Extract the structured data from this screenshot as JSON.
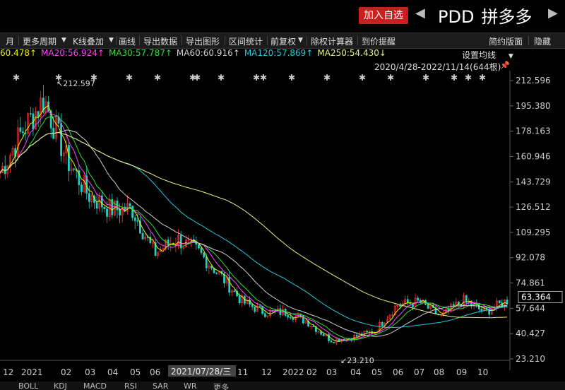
{
  "header": {
    "watchlist_button": "加入自选",
    "prev_icon": "triangle-left-icon",
    "next_icon": "triangle-right-icon",
    "ticker": "PDD",
    "name_cn": "拼多多"
  },
  "toolbar": {
    "items": [
      "月",
      "更多周期",
      "K线叠加",
      "画线",
      "导出数据",
      "导出图形",
      "区间统计",
      "前复权",
      "除权计算器",
      "到价提醒"
    ],
    "right_items": [
      "简约版面",
      "隐藏"
    ]
  },
  "ma_legend": [
    {
      "label": "60.478↑",
      "color": "#f0f000"
    },
    {
      "label": "MA20:56.924↑",
      "color": "#ff40ff"
    },
    {
      "label": "MA30:57.787↑",
      "color": "#30e030"
    },
    {
      "label": "MA60:60.916↑",
      "color": "#d0d0d0"
    },
    {
      "label": "MA120:57.869↑",
      "color": "#20c8e0"
    },
    {
      "label": "MA250:54.430↓",
      "color": "#f0f080"
    }
  ],
  "ma_settings": "设置均线",
  "date_range": "2020/4/28-2022/11/14(644根)",
  "bottom_tabs": [
    "BOLL",
    "KDJ",
    "MACD",
    "RSI",
    "SAR",
    "WR",
    "更多"
  ],
  "chart_data": {
    "type": "candlestick",
    "y_ticks": [
      "212.596",
      "195.380",
      "178.163",
      "160.946",
      "143.729",
      "126.512",
      "109.295",
      "92.078",
      "74.861",
      "57.644",
      "40.427",
      "23.210"
    ],
    "ylim": [
      23.21,
      212.596
    ],
    "current_price": "63.364",
    "annotations": [
      {
        "label": "212.597",
        "x": "2021-02",
        "y": 212.597
      },
      {
        "label": "23.210",
        "x": "2022-05",
        "y": 23.21
      }
    ],
    "x_ticks": [
      "12",
      "2021",
      "02",
      "03",
      "04",
      "05",
      "06",
      "07",
      "2021/07/28/三",
      "11",
      "12",
      "2022",
      "02",
      "03",
      "04",
      "05",
      "06",
      "07",
      "08",
      "09",
      "10"
    ],
    "series": [
      {
        "name": "close",
        "color": "#e05050",
        "x": [
          "2020-12",
          "2021-01",
          "2021-02",
          "2021-03",
          "2021-04",
          "2021-05",
          "2021-06",
          "2021-07",
          "2021-08",
          "2021-09",
          "2021-10",
          "2021-11",
          "2021-12",
          "2022-01",
          "2022-02",
          "2022-03",
          "2022-04",
          "2022-05",
          "2022-06",
          "2022-07",
          "2022-08",
          "2022-09",
          "2022-10",
          "2022-11"
        ],
        "values": [
          150,
          178,
          200,
          160,
          135,
          125,
          125,
          95,
          105,
          96,
          80,
          62,
          55,
          55,
          48,
          36,
          38,
          42,
          60,
          62,
          52,
          63,
          55,
          63
        ]
      }
    ]
  }
}
